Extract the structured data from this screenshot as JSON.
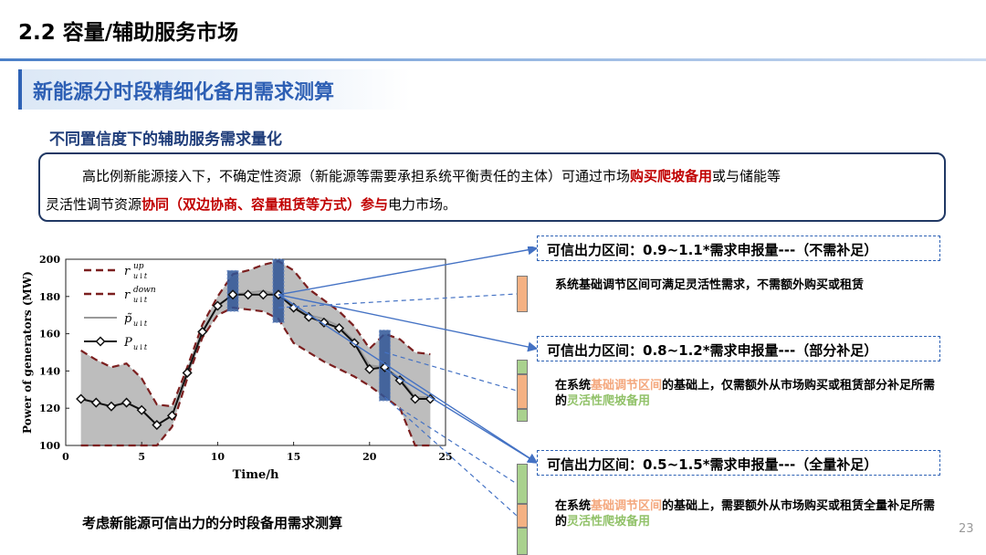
{
  "header": {
    "title": "2.2 容量/辅助服务市场",
    "section_title": "新能源分时段精细化备用需求测算",
    "sub_title": "不同置信度下的辅助服务需求量化"
  },
  "description": {
    "line1_a": "高比例新能源接入下，不确定性资源（新能源等需要承担系统平衡责任的主体）可通过市场",
    "line1_red": "购买爬坡备用",
    "line1_b": "或与储能等",
    "line2_a": "灵活性调节资源",
    "line2_red": "协同（双边协商、容量租赁等方式）参与",
    "line2_b": "电力市场。"
  },
  "ranges": [
    {
      "label": "可信出力区间：0.9~1.1*需求申报量---（不需补足）",
      "note": "系统基础调节区间可满足灵活性需求，不需额外购买或租赁"
    },
    {
      "label": "可信出力区间：0.8~1.2*需求申报量---（部分补足）",
      "note_a": "在系统",
      "note_orange": "基础调节区间",
      "note_b": "的基础上，仅需额外从市场购买或租赁部分补足所需的",
      "note_green": "灵活性爬坡备用"
    },
    {
      "label": "可信出力区间：0.5~1.5*需求申报量---（全量补足）",
      "note_a": "在系统",
      "note_orange": "基础调节区间",
      "note_b": "的基础上，需要额外从市场购买或租赁全量补足所需的",
      "note_green": "灵活性爬坡备用"
    }
  ],
  "caption": "考虑新能源可信出力的分时段备用需求测算",
  "page_number": "23",
  "colors": {
    "accent": "#2d5fb4",
    "red": "#c00000",
    "orange": "#f4b183",
    "green": "#a9d18e"
  },
  "chart_data": {
    "type": "line",
    "xlabel": "Time/h",
    "ylabel": "Power of generators (MW)",
    "xlim": [
      0,
      25
    ],
    "ylim": [
      100,
      200
    ],
    "xticks": [
      0,
      5,
      10,
      15,
      20,
      25
    ],
    "yticks": [
      100,
      120,
      140,
      160,
      180,
      200
    ],
    "legend_position": "top-left",
    "x": [
      1,
      2,
      3,
      4,
      5,
      6,
      7,
      8,
      9,
      10,
      11,
      12,
      13,
      14,
      15,
      16,
      17,
      18,
      19,
      20,
      21,
      22,
      23,
      24
    ],
    "series": [
      {
        "name": "r_up",
        "style": "dashed",
        "color": "#7b1f1f",
        "values": [
          151,
          146,
          142,
          144,
          136,
          122,
          121,
          142,
          165,
          180,
          192,
          194,
          197,
          199,
          194,
          184,
          178,
          172,
          164,
          152,
          160,
          157,
          150,
          149
        ]
      },
      {
        "name": "r_down",
        "style": "dashed",
        "color": "#7b1f1f",
        "values": [
          100,
          100,
          100,
          100,
          100,
          100,
          110,
          136,
          158,
          170,
          174,
          173,
          172,
          168,
          155,
          150,
          145,
          141,
          137,
          132,
          126,
          120,
          100,
          100
        ]
      },
      {
        "name": "p_tilde",
        "style": "solid",
        "color": "#b0b0b0",
        "values": [
          125,
          123,
          121,
          123,
          119,
          111,
          116,
          139,
          161,
          175,
          181,
          182,
          183,
          181,
          175,
          170,
          168,
          164,
          156,
          143,
          142,
          136,
          126,
          126
        ]
      },
      {
        "name": "P",
        "style": "solid-diamond",
        "color": "#111111",
        "values": [
          125,
          123,
          121,
          123,
          119,
          111,
          116,
          139,
          161,
          175,
          181,
          181,
          181,
          181,
          174,
          169,
          166,
          163,
          155,
          141,
          142,
          135,
          125,
          125
        ]
      }
    ],
    "highlight_hours": [
      11,
      14,
      21
    ]
  }
}
